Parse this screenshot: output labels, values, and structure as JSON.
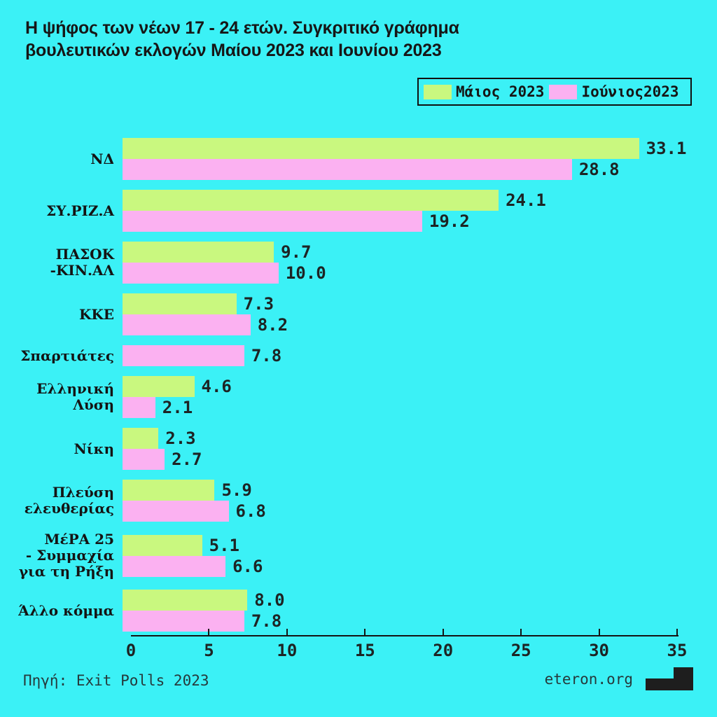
{
  "title": {
    "line1": "Η ψήφος των νέων 17 - 24 ετών. Συγκριτικό γράφημα",
    "line2": "βουλευτικών εκλογών Μαίου 2023 και Ιουνίου 2023"
  },
  "legend": {
    "items": [
      {
        "label": "Μάιος 2023",
        "color": "#C9F87F"
      },
      {
        "label": "Ιούνιος2023",
        "color": "#FBB1F1"
      }
    ]
  },
  "chart_data": {
    "type": "bar",
    "orientation": "horizontal",
    "title": "Η ψήφος των νέων 17 - 24 ετών. Συγκριτικό γράφημα βουλευτικών εκλογών Μαίου 2023 και Ιουνίου 2023",
    "xlim": [
      0,
      35
    ],
    "x_ticks": [
      "0",
      "5",
      "10",
      "15",
      "20",
      "25",
      "30",
      "35"
    ],
    "grid": false,
    "legend_position": "top-right",
    "series": [
      {
        "name": "Μάιος 2023",
        "color": "#C9F87F"
      },
      {
        "name": "Ιούνιος 2023",
        "color": "#FBB1F1"
      }
    ],
    "rows": [
      {
        "label_lines": [
          "ΝΔ"
        ],
        "may": "33.1",
        "june": "28.8"
      },
      {
        "label_lines": [
          "ΣΥ.ΡΙΖ.Α"
        ],
        "may": "24.1",
        "june": "19.2"
      },
      {
        "label_lines": [
          "ΠΑΣΟΚ",
          "-ΚΙΝ.ΑΛ"
        ],
        "may": "9.7",
        "june": "10.0"
      },
      {
        "label_lines": [
          "ΚΚΕ"
        ],
        "may": "7.3",
        "june": "8.2"
      },
      {
        "label_lines": [
          "Σπαρτιάτες"
        ],
        "may": null,
        "june": "7.8"
      },
      {
        "label_lines": [
          "Ελληνική",
          "Λύση"
        ],
        "may": "4.6",
        "june": "2.1"
      },
      {
        "label_lines": [
          "Νίκη"
        ],
        "may": "2.3",
        "june": "2.7"
      },
      {
        "label_lines": [
          "Πλεύση",
          "ελευθερίας"
        ],
        "may": "5.9",
        "june": "6.8"
      },
      {
        "label_lines": [
          "ΜέΡΑ 25",
          "- Συμμαχία",
          "για τη Ρήξη"
        ],
        "may": "5.1",
        "june": "6.6"
      },
      {
        "label_lines": [
          "Άλλο κόμμα"
        ],
        "may": "8.0",
        "june": "7.8"
      }
    ]
  },
  "footer": {
    "source": "Πηγή: Exit Polls 2023",
    "site": "eteron.org"
  },
  "colors": {
    "background": "#3BF1F6",
    "may_green": "#C9F87F",
    "june_pink": "#FBB1F1",
    "text_dark": "#161616"
  }
}
